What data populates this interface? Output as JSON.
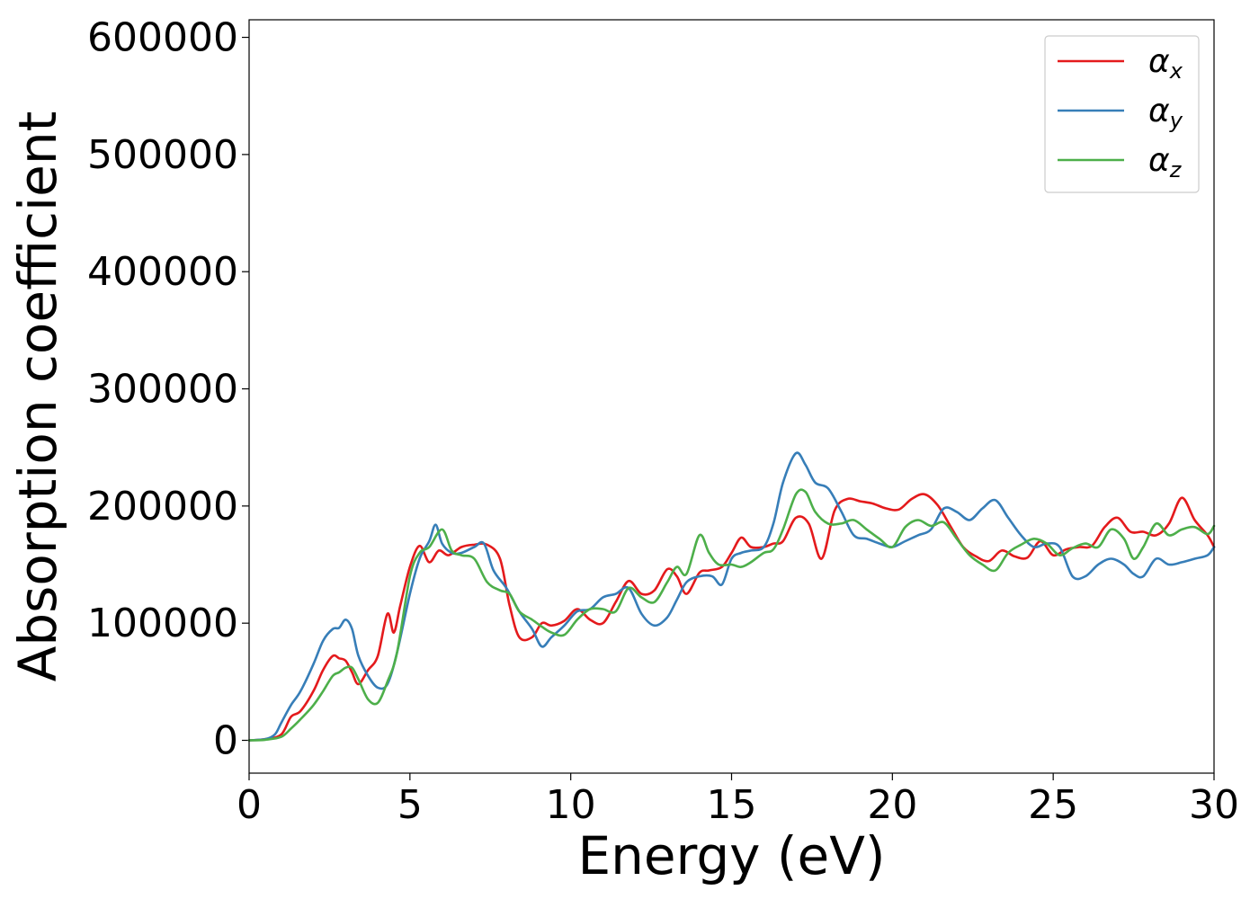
{
  "chart_data": {
    "type": "line",
    "title": "",
    "xlabel": "Energy (eV)",
    "ylabel": "Absorption coefficient",
    "xlim": [
      0,
      30
    ],
    "ylim": [
      -28000,
      615000
    ],
    "xticks": [
      0,
      5,
      10,
      15,
      20,
      25,
      30
    ],
    "yticks": [
      0,
      100000,
      200000,
      300000,
      400000,
      500000,
      600000
    ],
    "xtick_labels": [
      "0",
      "5",
      "10",
      "15",
      "20",
      "25",
      "30"
    ],
    "ytick_labels": [
      "0",
      "100000",
      "200000",
      "300000",
      "400000",
      "500000",
      "600000"
    ],
    "grid": false,
    "legend_position": "top-right",
    "series": [
      {
        "name": "α_x",
        "symbol": "α",
        "subscript": "x",
        "color": "#e41a1c",
        "x": [
          0,
          0.5,
          1.0,
          1.3,
          1.6,
          2.0,
          2.3,
          2.6,
          2.8,
          3.0,
          3.2,
          3.4,
          3.7,
          4.0,
          4.3,
          4.5,
          4.7,
          5.0,
          5.3,
          5.6,
          5.9,
          6.2,
          6.6,
          7.0,
          7.4,
          7.8,
          8.1,
          8.4,
          8.8,
          9.1,
          9.4,
          9.8,
          10.2,
          10.6,
          11.0,
          11.4,
          11.8,
          12.2,
          12.6,
          13.0,
          13.3,
          13.6,
          14.0,
          14.3,
          14.7,
          15.0,
          15.3,
          15.6,
          16.0,
          16.3,
          16.6,
          17.0,
          17.4,
          17.8,
          18.2,
          18.6,
          19.0,
          19.4,
          19.8,
          20.2,
          20.6,
          21.0,
          21.4,
          21.8,
          22.2,
          22.6,
          23.0,
          23.4,
          23.8,
          24.2,
          24.6,
          25.0,
          25.4,
          25.8,
          26.2,
          26.6,
          27.0,
          27.4,
          27.8,
          28.2,
          28.6,
          29.0,
          29.4,
          29.8,
          30.0
        ],
        "y": [
          0,
          1000,
          5000,
          20000,
          25000,
          42000,
          60000,
          72000,
          70000,
          68000,
          58000,
          48000,
          60000,
          72000,
          108000,
          92000,
          115000,
          148000,
          166000,
          152000,
          162000,
          158000,
          165000,
          167000,
          167000,
          155000,
          115000,
          88000,
          88000,
          100000,
          98000,
          102000,
          112000,
          103000,
          100000,
          118000,
          136000,
          125000,
          128000,
          146000,
          140000,
          125000,
          143000,
          145000,
          148000,
          160000,
          173000,
          165000,
          165000,
          168000,
          170000,
          190000,
          185000,
          155000,
          196000,
          206000,
          204000,
          202000,
          198000,
          197000,
          206000,
          210000,
          201000,
          183000,
          165000,
          157000,
          153000,
          162000,
          157000,
          156000,
          170000,
          158000,
          163000,
          165000,
          166000,
          182000,
          190000,
          178000,
          178000,
          175000,
          185000,
          207000,
          188000,
          175000,
          165000
        ]
      },
      {
        "name": "α_y",
        "symbol": "α",
        "subscript": "y",
        "color": "#377eb8",
        "x": [
          0,
          0.5,
          0.8,
          1.0,
          1.3,
          1.6,
          2.0,
          2.3,
          2.6,
          2.8,
          3.0,
          3.2,
          3.4,
          3.7,
          4.0,
          4.3,
          4.6,
          5.0,
          5.3,
          5.6,
          5.8,
          6.0,
          6.3,
          6.6,
          7.0,
          7.3,
          7.6,
          8.0,
          8.4,
          8.8,
          9.1,
          9.4,
          9.8,
          10.2,
          10.6,
          11.0,
          11.4,
          11.8,
          12.2,
          12.6,
          13.0,
          13.3,
          13.6,
          14.0,
          14.4,
          14.7,
          15.0,
          15.3,
          15.6,
          16.0,
          16.3,
          16.6,
          17.0,
          17.3,
          17.6,
          18.0,
          18.4,
          18.8,
          19.2,
          19.6,
          20.0,
          20.4,
          20.8,
          21.2,
          21.6,
          22.0,
          22.4,
          22.8,
          23.2,
          23.6,
          24.0,
          24.4,
          24.8,
          25.2,
          25.6,
          26.0,
          26.4,
          26.8,
          27.2,
          27.5,
          27.8,
          28.2,
          28.6,
          29.0,
          29.4,
          29.8,
          30.0
        ],
        "y": [
          0,
          1000,
          5000,
          15000,
          30000,
          42000,
          65000,
          85000,
          95000,
          96000,
          103000,
          95000,
          72000,
          55000,
          45000,
          48000,
          75000,
          125000,
          155000,
          170000,
          184000,
          168000,
          160000,
          160000,
          165000,
          168000,
          145000,
          130000,
          110000,
          95000,
          80000,
          88000,
          98000,
          110000,
          112000,
          122000,
          125000,
          130000,
          108000,
          98000,
          105000,
          120000,
          135000,
          140000,
          140000,
          133000,
          155000,
          160000,
          162000,
          165000,
          185000,
          220000,
          245000,
          235000,
          220000,
          215000,
          196000,
          175000,
          172000,
          168000,
          165000,
          170000,
          175000,
          180000,
          198000,
          195000,
          188000,
          198000,
          205000,
          190000,
          175000,
          165000,
          168000,
          165000,
          140000,
          140000,
          150000,
          155000,
          150000,
          142000,
          140000,
          155000,
          150000,
          152000,
          155000,
          158000,
          165000
        ]
      },
      {
        "name": "α_z",
        "symbol": "α",
        "subscript": "z",
        "color": "#4daf4a",
        "x": [
          0,
          0.5,
          1.0,
          1.3,
          1.6,
          2.0,
          2.3,
          2.6,
          2.8,
          3.0,
          3.2,
          3.4,
          3.7,
          4.0,
          4.3,
          4.6,
          5.0,
          5.3,
          5.6,
          6.0,
          6.3,
          6.6,
          7.0,
          7.4,
          7.8,
          8.1,
          8.4,
          8.8,
          9.1,
          9.4,
          9.8,
          10.2,
          10.6,
          11.0,
          11.4,
          11.8,
          12.2,
          12.6,
          13.0,
          13.3,
          13.6,
          14.0,
          14.3,
          14.6,
          15.0,
          15.3,
          15.6,
          16.0,
          16.3,
          16.6,
          17.0,
          17.3,
          17.6,
          18.0,
          18.4,
          18.8,
          19.2,
          19.6,
          20.0,
          20.4,
          20.8,
          21.2,
          21.6,
          22.0,
          22.4,
          22.8,
          23.2,
          23.6,
          24.0,
          24.4,
          24.8,
          25.2,
          25.6,
          26.0,
          26.4,
          26.8,
          27.2,
          27.5,
          27.8,
          28.2,
          28.6,
          29.0,
          29.4,
          29.8,
          30.0
        ],
        "y": [
          0,
          500,
          3000,
          10000,
          18000,
          30000,
          42000,
          55000,
          58000,
          62000,
          62000,
          52000,
          35000,
          32000,
          50000,
          75000,
          140000,
          160000,
          165000,
          180000,
          162000,
          158000,
          155000,
          135000,
          128000,
          125000,
          110000,
          103000,
          97000,
          92000,
          90000,
          103000,
          112000,
          112000,
          110000,
          130000,
          122000,
          118000,
          135000,
          148000,
          142000,
          175000,
          160000,
          150000,
          150000,
          148000,
          152000,
          160000,
          163000,
          180000,
          210000,
          212000,
          195000,
          185000,
          185000,
          188000,
          180000,
          172000,
          165000,
          182000,
          188000,
          183000,
          186000,
          172000,
          158000,
          150000,
          145000,
          160000,
          167000,
          172000,
          168000,
          158000,
          164000,
          168000,
          165000,
          180000,
          172000,
          155000,
          165000,
          185000,
          175000,
          180000,
          182000,
          176000,
          183000
        ]
      }
    ]
  }
}
